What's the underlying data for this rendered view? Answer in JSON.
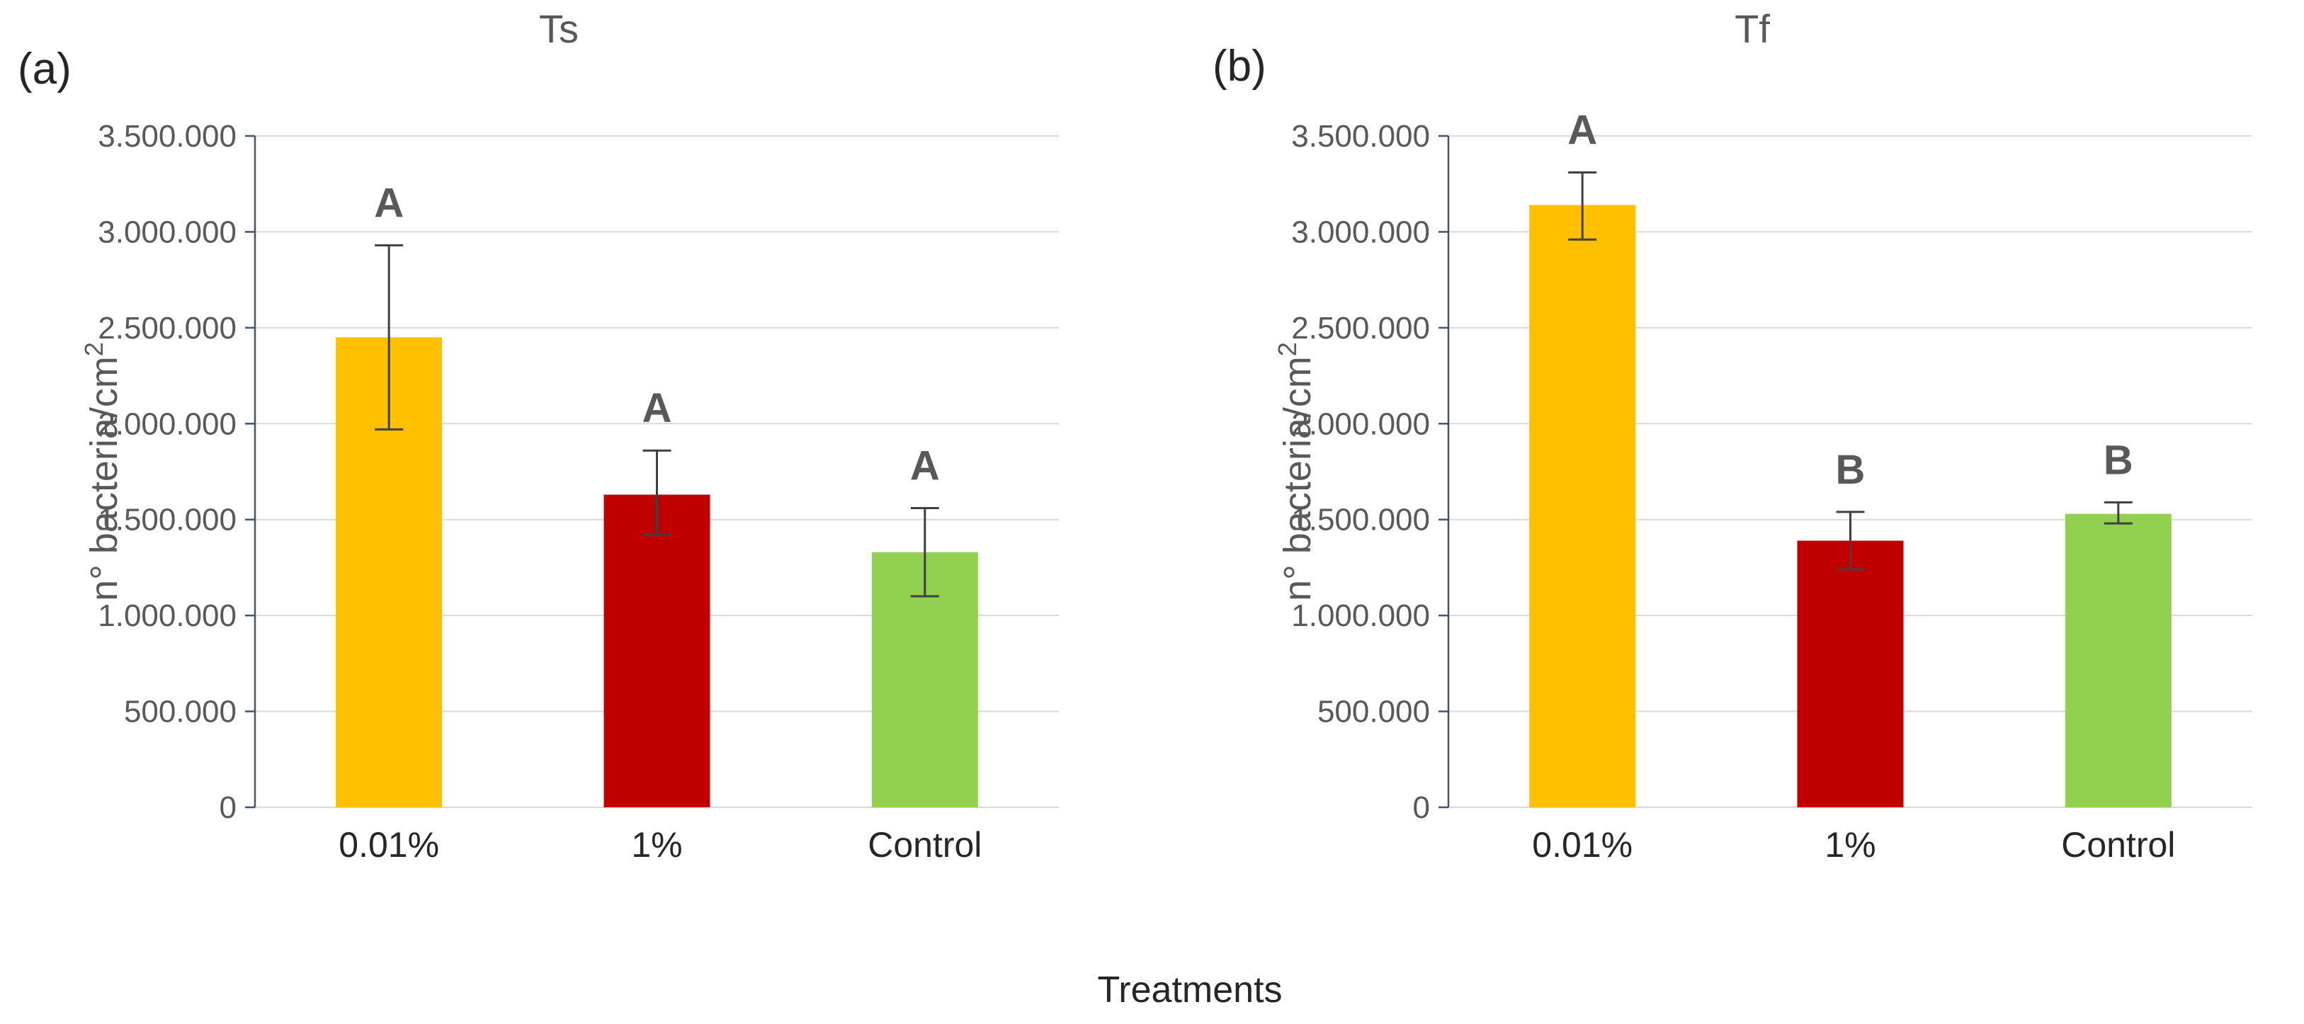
{
  "figure": {
    "xlabel": "Treatments",
    "panels": [
      {
        "corner_label": "(a)",
        "title": "Ts"
      },
      {
        "corner_label": "(b)",
        "title": "Tf"
      }
    ]
  },
  "chart_data": [
    {
      "type": "bar",
      "title": "Ts",
      "panel": "a",
      "categories": [
        "0.01%",
        "1%",
        "Control"
      ],
      "values": [
        2450000,
        1630000,
        1330000
      ],
      "error_upper": [
        2930000,
        1860000,
        1560000
      ],
      "error_lower": [
        1970000,
        1420000,
        1100000
      ],
      "sig_letters": [
        "A",
        "A",
        "A"
      ],
      "bar_colors": [
        "#FFC000",
        "#C00000",
        "#92D050"
      ],
      "ylabel_main": "n° bacteria/cm",
      "ylabel_sup": "2",
      "xlabel": "Treatments",
      "ylim": [
        0,
        3500000
      ],
      "ytick_step": 500000,
      "ytick_labels": [
        "0",
        "500.000",
        "1.000.000",
        "1.500.000",
        "2.000.000",
        "2.500.000",
        "3.000.000",
        "3.500.000"
      ],
      "grid": true,
      "legend": "none"
    },
    {
      "type": "bar",
      "title": "Tf",
      "panel": "b",
      "categories": [
        "0.01%",
        "1%",
        "Control"
      ],
      "values": [
        3140000,
        1390000,
        1530000
      ],
      "error_upper": [
        3310000,
        1540000,
        1590000
      ],
      "error_lower": [
        2960000,
        1240000,
        1480000
      ],
      "sig_letters": [
        "A",
        "B",
        "B"
      ],
      "bar_colors": [
        "#FFC000",
        "#C00000",
        "#92D050"
      ],
      "ylabel_main": "n° bacteria/cm",
      "ylabel_sup": "2",
      "xlabel": "Treatments",
      "ylim": [
        0,
        3500000
      ],
      "ytick_step": 500000,
      "ytick_labels": [
        "0",
        "500.000",
        "1.000.000",
        "1.500.000",
        "2.000.000",
        "2.500.000",
        "3.000.000",
        "3.500.000"
      ],
      "grid": true,
      "legend": "none"
    }
  ],
  "colors": {
    "bar_yellow": "#FFC000",
    "bar_red": "#C00000",
    "bar_green": "#92D050",
    "gridline": "#D9D9D9",
    "axis_line": "#44546A",
    "error_bar": "#404040",
    "sig_letter": "#595959",
    "tick_label": "#595959",
    "category_label": "#262626",
    "panel_title": "#595959",
    "background": "#FFFFFF"
  }
}
